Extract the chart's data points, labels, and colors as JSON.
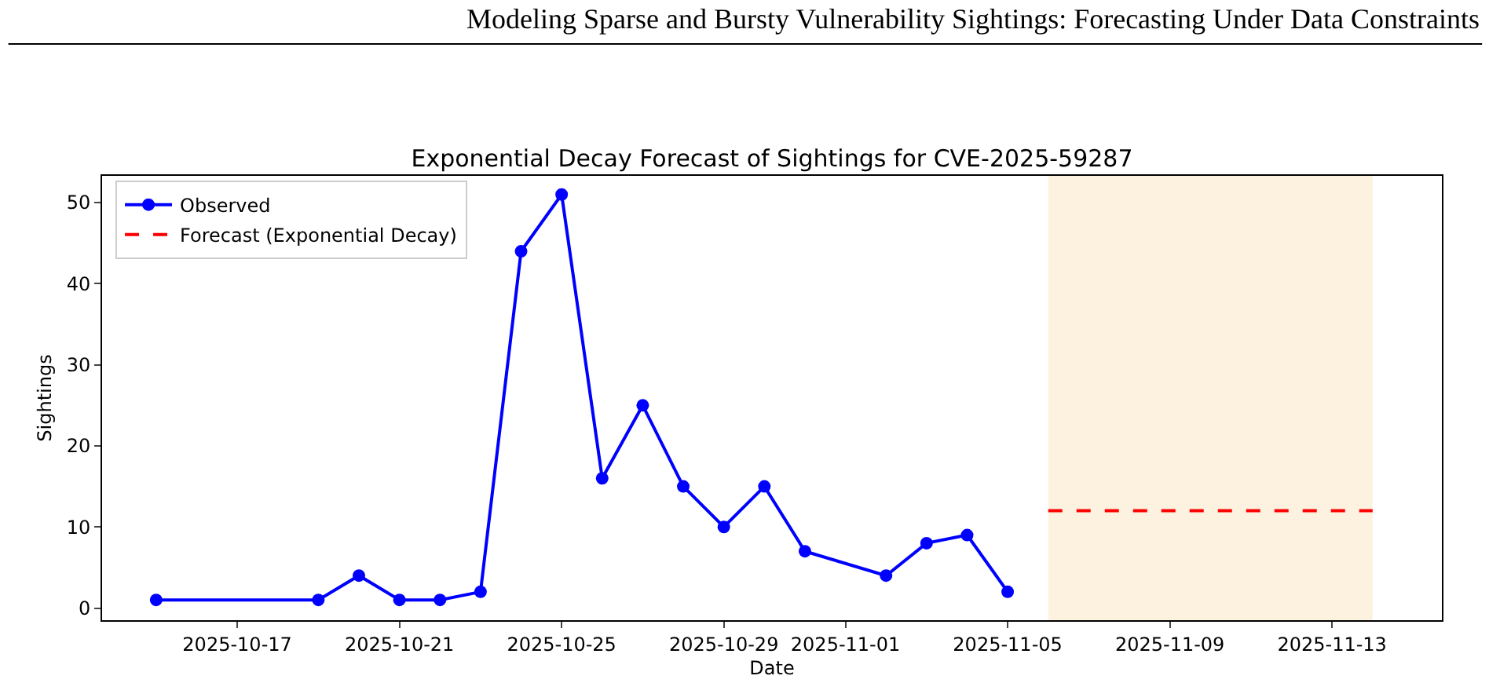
{
  "chart_data": {
    "type": "line",
    "title": "Exponential Decay Forecast of Sightings for CVE-2025-59287",
    "xlabel": "Date",
    "ylabel": "Sightings",
    "annotations": [
      "Modeling Sparse and Bursty Vulnerability Sightings: Forecasting Under Data Constraints"
    ],
    "series": [
      {
        "name": "Observed",
        "color": "#0000ff",
        "marker": "circle",
        "line_style": "solid",
        "x": [
          "2025-10-15",
          "2025-10-19",
          "2025-10-20",
          "2025-10-21",
          "2025-10-22",
          "2025-10-23",
          "2025-10-24",
          "2025-10-25",
          "2025-10-26",
          "2025-10-27",
          "2025-10-28",
          "2025-10-29",
          "2025-10-30",
          "2025-10-31",
          "2025-11-02",
          "2025-11-03",
          "2025-11-04",
          "2025-11-05"
        ],
        "values": [
          1,
          1,
          4,
          1,
          1,
          2,
          44,
          51,
          16,
          25,
          15,
          10,
          15,
          7,
          4,
          8,
          9,
          2
        ]
      },
      {
        "name": "Forecast (Exponential Decay)",
        "color": "#ff0000",
        "marker": "none",
        "line_style": "dashed",
        "x": [
          "2025-11-06",
          "2025-11-14"
        ],
        "values": [
          12,
          12
        ]
      }
    ],
    "bands": [
      {
        "axis": "x",
        "from": "2025-11-06",
        "to": "2025-11-14",
        "color": "#fdf2e0"
      }
    ],
    "xlim": [
      "2025-10-13T16:00",
      "2025-11-15T17:00"
    ],
    "xticks": [
      "2025-10-17",
      "2025-10-21",
      "2025-10-25",
      "2025-10-29",
      "2025-11-01",
      "2025-11-05",
      "2025-11-09",
      "2025-11-13"
    ],
    "ylim": [
      -1.5,
      53.3
    ],
    "yticks": [
      0,
      10,
      20,
      30,
      40,
      50
    ],
    "grid": false,
    "legend": "top left"
  }
}
